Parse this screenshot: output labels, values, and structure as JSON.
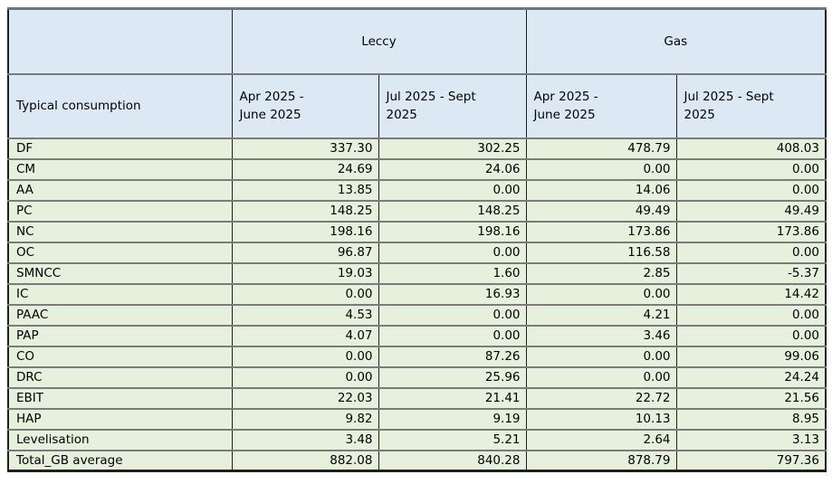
{
  "colors": {
    "page_bg": "#ffffff",
    "header_fill": "#dce9f5",
    "body_fill": "#e7f0dd",
    "border_dark": "#1f1f1f",
    "border_gray": "#7b7b7b",
    "text": "#000000"
  },
  "table": {
    "corner_label": "",
    "groups": [
      {
        "label": "Leccy"
      },
      {
        "label": "Gas"
      }
    ],
    "row_header": "Typical consumption",
    "period_headers": [
      {
        "label": "Apr 2025 - June 2025",
        "lines": [
          "Apr 2025 -",
          "June 2025"
        ]
      },
      {
        "label": "Jul 2025 - Sept 2025",
        "lines": [
          "Jul 2025 - Sept",
          "2025"
        ]
      },
      {
        "label": "Apr 2025 - June 2025",
        "lines": [
          "Apr 2025 -",
          "June 2025"
        ]
      },
      {
        "label": "Jul 2025 - Sept 2025",
        "lines": [
          "Jul 2025 - Sept",
          "2025"
        ]
      }
    ]
  },
  "chart_data": {
    "type": "table",
    "title": "",
    "row_header": "Typical consumption",
    "column_groups": [
      "Leccy",
      "Gas"
    ],
    "columns": [
      "Leccy Apr 2025 - June 2025",
      "Leccy Jul 2025 - Sept 2025",
      "Gas Apr 2025 - June 2025",
      "Gas Jul 2025 - Sept 2025"
    ],
    "value_format": "2dp",
    "rows": [
      {
        "label": "DF",
        "values": [
          337.3,
          302.25,
          478.79,
          408.03
        ]
      },
      {
        "label": "CM",
        "values": [
          24.69,
          24.06,
          0.0,
          0.0
        ]
      },
      {
        "label": "AA",
        "values": [
          13.85,
          0.0,
          14.06,
          0.0
        ]
      },
      {
        "label": "PC",
        "values": [
          148.25,
          148.25,
          49.49,
          49.49
        ]
      },
      {
        "label": "NC",
        "values": [
          198.16,
          198.16,
          173.86,
          173.86
        ]
      },
      {
        "label": "OC",
        "values": [
          96.87,
          0.0,
          116.58,
          0.0
        ]
      },
      {
        "label": "SMNCC",
        "values": [
          19.03,
          1.6,
          2.85,
          -5.37
        ]
      },
      {
        "label": "IC",
        "values": [
          0.0,
          16.93,
          0.0,
          14.42
        ]
      },
      {
        "label": "PAAC",
        "values": [
          4.53,
          0.0,
          4.21,
          0.0
        ]
      },
      {
        "label": "PAP",
        "values": [
          4.07,
          0.0,
          3.46,
          0.0
        ]
      },
      {
        "label": "CO",
        "values": [
          0.0,
          87.26,
          0.0,
          99.06
        ]
      },
      {
        "label": "DRC",
        "values": [
          0.0,
          25.96,
          0.0,
          24.24
        ]
      },
      {
        "label": "EBIT",
        "values": [
          22.03,
          21.41,
          22.72,
          21.56
        ]
      },
      {
        "label": "HAP",
        "values": [
          9.82,
          9.19,
          10.13,
          8.95
        ]
      },
      {
        "label": "Levelisation",
        "values": [
          3.48,
          5.21,
          2.64,
          3.13
        ]
      },
      {
        "label": "Total_GB average",
        "values": [
          882.08,
          840.28,
          878.79,
          797.36
        ]
      }
    ]
  }
}
